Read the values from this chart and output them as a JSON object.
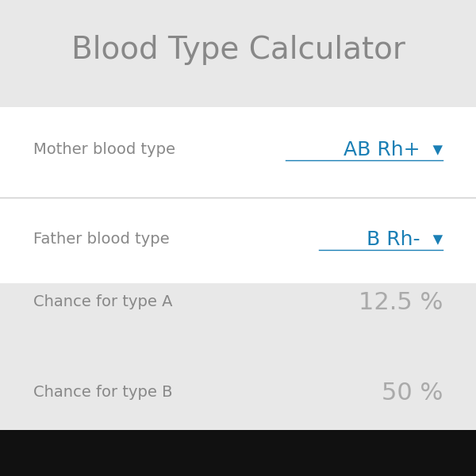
{
  "title": "Blood Type Calculator",
  "title_color": "#888888",
  "title_fontsize": 28,
  "bg_color": "#e8e8e8",
  "white_bg": "#ffffff",
  "row1_label": "Mother blood type",
  "row1_value": "AB Rh+  ▾",
  "row2_label": "Father blood type",
  "row2_value": "B Rh-  ▾",
  "row3_label": "Chance for type A",
  "row3_value": "12.5 %",
  "row4_label": "Chance for type B",
  "row4_value": "50 %",
  "label_color": "#888888",
  "value_color_blue": "#1a7fb5",
  "value_color_gray": "#aaaaaa",
  "label_fontsize": 14,
  "value_fontsize": 18,
  "result_label_fontsize": 14,
  "result_value_fontsize": 22,
  "divider_color": "#cccccc",
  "black_bar_color": "#111111"
}
